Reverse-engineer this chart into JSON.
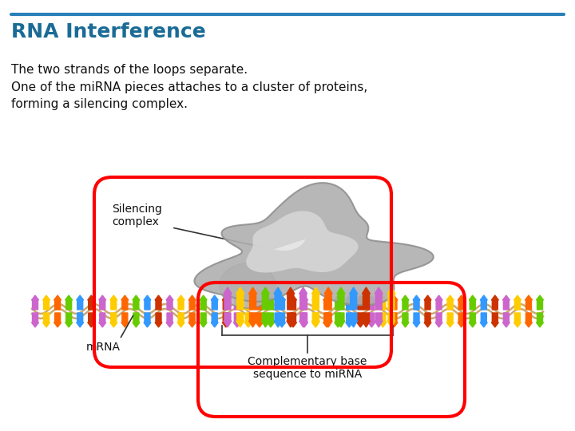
{
  "title": "RNA Interference",
  "title_color": "#1a6b96",
  "title_fontsize": 18,
  "line_color": "#2980b9",
  "bg_color": "#ffffff",
  "text1": "The two strands of the loops separate.",
  "text2": "One of the miRNA pieces attaches to a cluster of proteins,\nforming a silencing complex.",
  "text_fontsize": 11,
  "text_color": "#111111",
  "label_silencing": "Silencing\ncomplex",
  "label_mrna": "mRNA",
  "label_complementary": "Complementary base\nsequence to miRNA",
  "colors_cycle": [
    "#cc66cc",
    "#ffcc00",
    "#ff6600",
    "#66cc00",
    "#3399ff",
    "#cc3300"
  ]
}
